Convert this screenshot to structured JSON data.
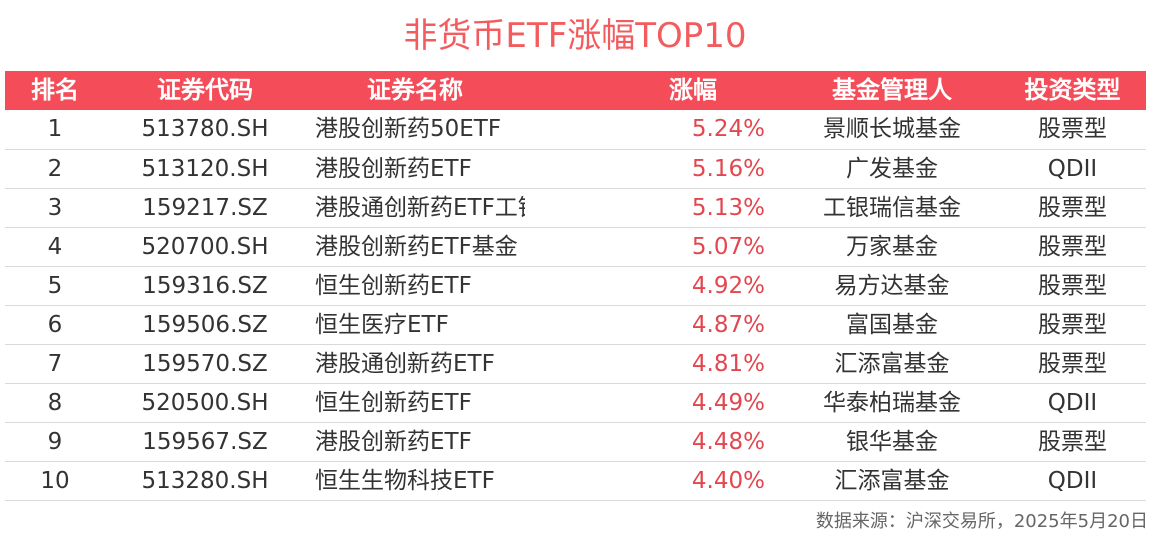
{
  "title": "非货币ETF涨幅TOP10",
  "colors": {
    "header_bg": "#f44c58",
    "title": "#f25c5f",
    "change_text": "#e2474f"
  },
  "columns": {
    "rank": "排名",
    "code": "证券代码",
    "name": "证券名称",
    "change": "涨幅",
    "manager": "基金管理人",
    "type": "投资类型"
  },
  "rows": [
    {
      "rank": "1",
      "code": "513780.SH",
      "name": "港股创新药50ETF",
      "change": "5.24%",
      "manager": "景顺长城基金",
      "type": "股票型"
    },
    {
      "rank": "2",
      "code": "513120.SH",
      "name": "港股创新药ETF",
      "change": "5.16%",
      "manager": "广发基金",
      "type": "QDII"
    },
    {
      "rank": "3",
      "code": "159217.SZ",
      "name": "港股通创新药ETF工银",
      "change": "5.13%",
      "manager": "工银瑞信基金",
      "type": "股票型"
    },
    {
      "rank": "4",
      "code": "520700.SH",
      "name": "港股创新药ETF基金",
      "change": "5.07%",
      "manager": "万家基金",
      "type": "股票型"
    },
    {
      "rank": "5",
      "code": "159316.SZ",
      "name": "恒生创新药ETF",
      "change": "4.92%",
      "manager": "易方达基金",
      "type": "股票型"
    },
    {
      "rank": "6",
      "code": "159506.SZ",
      "name": "恒生医疗ETF",
      "change": "4.87%",
      "manager": "富国基金",
      "type": "股票型"
    },
    {
      "rank": "7",
      "code": "159570.SZ",
      "name": "港股通创新药ETF",
      "change": "4.81%",
      "manager": "汇添富基金",
      "type": "股票型"
    },
    {
      "rank": "8",
      "code": "520500.SH",
      "name": "恒生创新药ETF",
      "change": "4.49%",
      "manager": "华泰柏瑞基金",
      "type": "QDII"
    },
    {
      "rank": "9",
      "code": "159567.SZ",
      "name": "港股创新药ETF",
      "change": "4.48%",
      "manager": "银华基金",
      "type": "股票型"
    },
    {
      "rank": "10",
      "code": "513280.SH",
      "name": "恒生生物科技ETF",
      "change": "4.40%",
      "manager": "汇添富基金",
      "type": "QDII"
    }
  ],
  "source": "数据来源：沪深交易所，2025年5月20日"
}
